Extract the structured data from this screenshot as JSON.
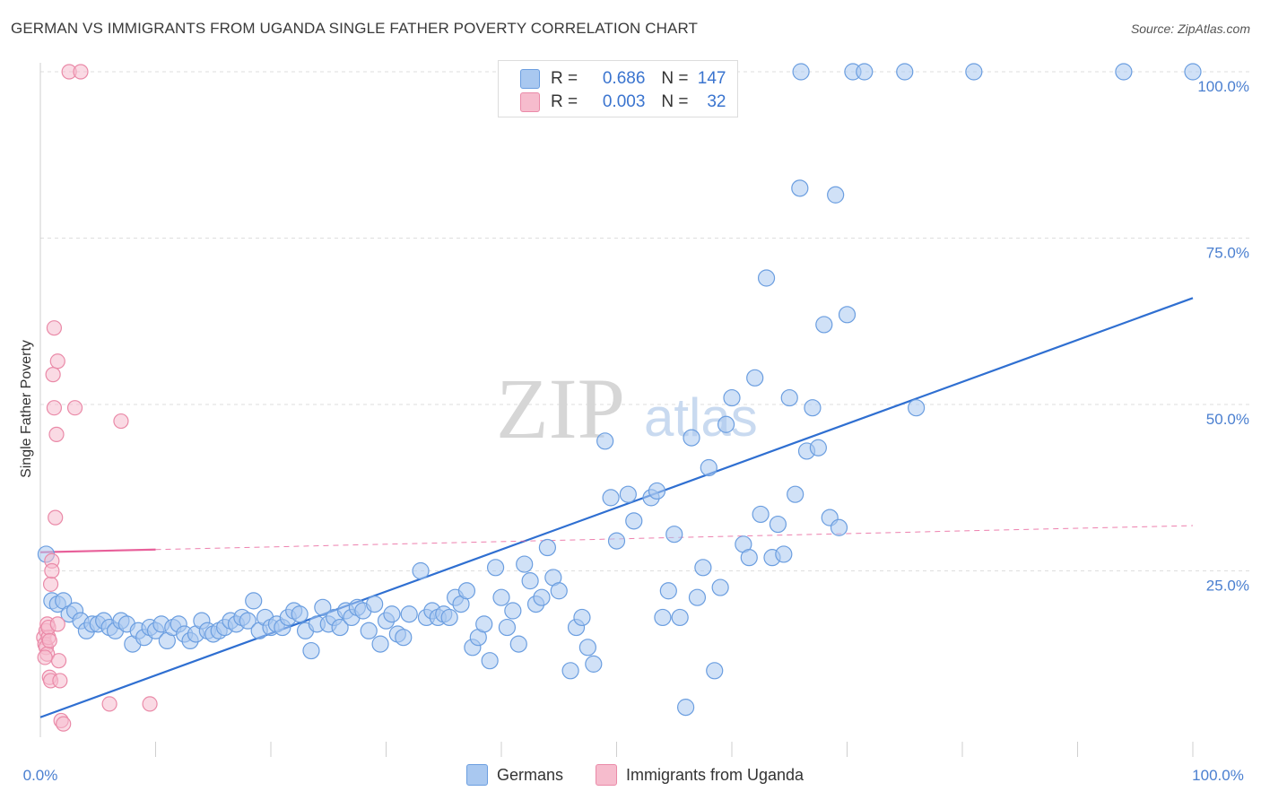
{
  "title": "GERMAN VS IMMIGRANTS FROM UGANDA SINGLE FATHER POVERTY CORRELATION CHART",
  "source": "Source: ZipAtlas.com",
  "watermark": {
    "zip": "ZIP",
    "atlas": "atlas"
  },
  "legend": {
    "r_label": "R =",
    "n_label": "N =",
    "rows": [
      {
        "r": "0.686",
        "n": "147"
      },
      {
        "r": "0.003",
        "n": "32"
      }
    ]
  },
  "bottom_legend": [
    "Germans",
    "Immigrants from Uganda"
  ],
  "colors": {
    "germans_fill": "#a9c8f0",
    "germans_stroke": "#6b9ee0",
    "germans_line": "#2f6fd1",
    "uganda_fill": "#f6bccd",
    "uganda_stroke": "#ea8aa8",
    "uganda_line": "#e8609a",
    "grid": "#dedede",
    "tick_text": "#4a7fd0"
  },
  "chart_data": {
    "type": "scatter",
    "title": "GERMAN VS IMMIGRANTS FROM UGANDA SINGLE FATHER POVERTY CORRELATION CHART",
    "xlabel": "",
    "ylabel": "Single Father Poverty",
    "xlim": [
      0,
      100
    ],
    "ylim": [
      0,
      100
    ],
    "x_tick_labels": [
      "0.0%",
      "100.0%"
    ],
    "y_tick_labels": [
      "25.0%",
      "50.0%",
      "75.0%",
      "100.0%"
    ],
    "y_tick_values": [
      25,
      50,
      75,
      100
    ],
    "grid": true,
    "legend_position": "top-center",
    "series": [
      {
        "name": "Germans",
        "r": 0.686,
        "n": 147,
        "trend": {
          "x": [
            0,
            100
          ],
          "y": [
            3,
            66
          ],
          "style": "solid"
        },
        "points": [
          [
            0.5,
            27.5
          ],
          [
            1,
            20.5
          ],
          [
            1.5,
            20
          ],
          [
            2,
            20.5
          ],
          [
            2.5,
            18.5
          ],
          [
            3,
            19
          ],
          [
            3.5,
            17.5
          ],
          [
            4,
            16
          ],
          [
            4.5,
            17
          ],
          [
            5,
            17
          ],
          [
            5.5,
            17.5
          ],
          [
            6,
            16.5
          ],
          [
            6.5,
            16
          ],
          [
            7,
            17.5
          ],
          [
            7.5,
            17
          ],
          [
            8,
            14
          ],
          [
            8.5,
            16
          ],
          [
            9,
            15
          ],
          [
            9.5,
            16.5
          ],
          [
            10,
            16
          ],
          [
            10.5,
            17
          ],
          [
            11,
            14.5
          ],
          [
            11.5,
            16.5
          ],
          [
            12,
            17
          ],
          [
            12.5,
            15.5
          ],
          [
            13,
            14.5
          ],
          [
            13.5,
            15.5
          ],
          [
            14,
            17.5
          ],
          [
            14.5,
            16
          ],
          [
            15,
            15.5
          ],
          [
            15.5,
            16
          ],
          [
            16,
            16.5
          ],
          [
            16.5,
            17.5
          ],
          [
            17,
            17
          ],
          [
            17.5,
            18
          ],
          [
            18,
            17.5
          ],
          [
            18.5,
            20.5
          ],
          [
            19,
            16
          ],
          [
            19.5,
            18
          ],
          [
            20,
            16.5
          ],
          [
            20.5,
            17
          ],
          [
            21,
            16.5
          ],
          [
            21.5,
            18
          ],
          [
            22,
            19
          ],
          [
            22.5,
            18.5
          ],
          [
            23,
            16
          ],
          [
            23.5,
            13
          ],
          [
            24,
            17
          ],
          [
            24.5,
            19.5
          ],
          [
            25,
            17
          ],
          [
            25.5,
            18
          ],
          [
            26,
            16.5
          ],
          [
            26.5,
            19
          ],
          [
            27,
            18
          ],
          [
            27.5,
            19.5
          ],
          [
            28,
            19
          ],
          [
            28.5,
            16
          ],
          [
            29,
            20
          ],
          [
            29.5,
            14
          ],
          [
            30,
            17.5
          ],
          [
            30.5,
            18.5
          ],
          [
            31,
            15.5
          ],
          [
            31.5,
            15
          ],
          [
            32,
            18.5
          ],
          [
            33,
            25
          ],
          [
            33.5,
            18
          ],
          [
            34,
            19
          ],
          [
            34.5,
            18
          ],
          [
            35,
            18.5
          ],
          [
            35.5,
            18
          ],
          [
            36,
            21
          ],
          [
            36.5,
            20
          ],
          [
            37,
            22
          ],
          [
            37.5,
            13.5
          ],
          [
            38,
            15
          ],
          [
            38.5,
            17
          ],
          [
            39,
            11.5
          ],
          [
            39.5,
            25.5
          ],
          [
            40,
            21
          ],
          [
            40.5,
            16.5
          ],
          [
            41,
            19
          ],
          [
            41.5,
            14
          ],
          [
            42,
            26
          ],
          [
            42.5,
            23.5
          ],
          [
            43,
            20
          ],
          [
            43.5,
            21
          ],
          [
            44,
            28.5
          ],
          [
            44.5,
            24
          ],
          [
            45,
            22
          ],
          [
            46,
            10
          ],
          [
            46.5,
            16.5
          ],
          [
            47,
            18
          ],
          [
            47.5,
            13.5
          ],
          [
            48,
            11
          ],
          [
            49,
            44.5
          ],
          [
            49.5,
            36
          ],
          [
            50,
            29.5
          ],
          [
            51,
            36.5
          ],
          [
            51.5,
            32.5
          ],
          [
            53,
            36
          ],
          [
            53.5,
            37
          ],
          [
            54,
            18
          ],
          [
            54.5,
            22
          ],
          [
            55,
            30.5
          ],
          [
            55.5,
            18
          ],
          [
            56,
            4.5
          ],
          [
            56.5,
            45
          ],
          [
            57,
            21
          ],
          [
            57.5,
            25.5
          ],
          [
            58,
            40.5
          ],
          [
            58.5,
            10
          ],
          [
            59,
            22.5
          ],
          [
            59.5,
            47
          ],
          [
            60,
            51
          ],
          [
            61,
            29
          ],
          [
            61.5,
            27
          ],
          [
            62,
            54
          ],
          [
            62.5,
            33.5
          ],
          [
            63,
            69
          ],
          [
            63.5,
            27
          ],
          [
            64,
            32
          ],
          [
            64.5,
            27.5
          ],
          [
            65,
            51
          ],
          [
            65.5,
            36.5
          ],
          [
            65.9,
            82.5
          ],
          [
            66,
            100
          ],
          [
            66.5,
            43
          ],
          [
            67,
            49.5
          ],
          [
            67.5,
            43.5
          ],
          [
            68,
            62
          ],
          [
            68.5,
            33
          ],
          [
            69,
            81.5
          ],
          [
            69.3,
            31.5
          ],
          [
            70,
            63.5
          ],
          [
            70.5,
            100
          ],
          [
            71.5,
            100
          ],
          [
            75,
            100
          ],
          [
            76,
            49.5
          ],
          [
            81,
            100
          ],
          [
            94,
            100
          ],
          [
            100,
            100
          ]
        ]
      },
      {
        "name": "Immigrants from Uganda",
        "r": 0.003,
        "n": 32,
        "trend": {
          "x": [
            0,
            10
          ],
          "y": [
            27.8,
            28.2
          ],
          "dash_x": [
            10,
            100
          ],
          "dash_y": [
            28.2,
            31.8
          ]
        },
        "points": [
          [
            0.3,
            15
          ],
          [
            0.4,
            14
          ],
          [
            0.5,
            13.5
          ],
          [
            0.5,
            16
          ],
          [
            0.6,
            17
          ],
          [
            0.6,
            12.5
          ],
          [
            0.7,
            15
          ],
          [
            0.7,
            16.5
          ],
          [
            0.8,
            14.5
          ],
          [
            0.8,
            9
          ],
          [
            0.9,
            8.5
          ],
          [
            0.9,
            23
          ],
          [
            1,
            26.5
          ],
          [
            1,
            25
          ],
          [
            1.1,
            54.5
          ],
          [
            1.2,
            61.5
          ],
          [
            1.2,
            49.5
          ],
          [
            1.3,
            33
          ],
          [
            1.4,
            45.5
          ],
          [
            1.5,
            56.5
          ],
          [
            1.5,
            17
          ],
          [
            1.6,
            11.5
          ],
          [
            1.7,
            8.5
          ],
          [
            1.8,
            2.5
          ],
          [
            2,
            2
          ],
          [
            2.5,
            100
          ],
          [
            3,
            49.5
          ],
          [
            3.5,
            100
          ],
          [
            6,
            5
          ],
          [
            7,
            47.5
          ],
          [
            9.5,
            5
          ],
          [
            0.4,
            12
          ]
        ]
      }
    ]
  }
}
